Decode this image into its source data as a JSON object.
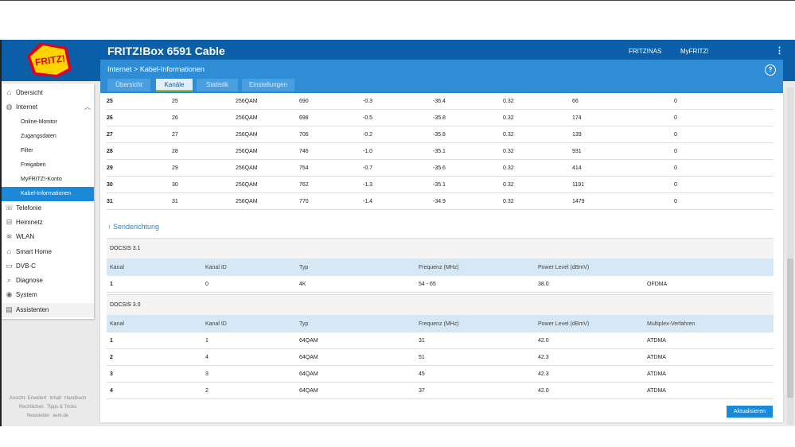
{
  "header": {
    "title": "FRITZ!Box 6591 Cable",
    "logo_text": "FRITZ!",
    "links": [
      "FRITZ!NAS",
      "MyFRITZ!"
    ],
    "kebab": "⋮"
  },
  "subheader": {
    "breadcrumb_parent": "Internet",
    "breadcrumb_sep": ">",
    "breadcrumb_current": "Kabel-Informationen",
    "help": "?",
    "tabs": [
      "Übersicht",
      "Kanäle",
      "Statistik",
      "Einstellungen"
    ],
    "active_tab": "Kanäle"
  },
  "sidebar": {
    "items": [
      {
        "label": "Übersicht",
        "icon": "home-icon",
        "glyph": "⌂"
      },
      {
        "label": "Internet",
        "icon": "globe-icon",
        "glyph": "◍",
        "chevron": "︿"
      },
      {
        "label": "Online-Monitor"
      },
      {
        "label": "Zugangsdaten"
      },
      {
        "label": "Filter"
      },
      {
        "label": "Freigaben"
      },
      {
        "label": "MyFRITZ!-Konto"
      },
      {
        "label": "Kabel-Informationen"
      },
      {
        "label": "Telefonie",
        "icon": "phone-icon",
        "glyph": "☏"
      },
      {
        "label": "Heimnetz",
        "icon": "network-icon",
        "glyph": "⊟"
      },
      {
        "label": "WLAN",
        "icon": "wifi-icon",
        "glyph": "≋"
      },
      {
        "label": "Smart Home",
        "icon": "smarthome-icon",
        "glyph": "⌂"
      },
      {
        "label": "DVB-C",
        "icon": "tv-icon",
        "glyph": "▭"
      },
      {
        "label": "Diagnose",
        "icon": "diagnose-icon",
        "glyph": "⌕"
      },
      {
        "label": "System",
        "icon": "system-icon",
        "glyph": "◉"
      },
      {
        "label": "Assistenten",
        "icon": "assistant-icon",
        "glyph": "▤"
      }
    ],
    "footer": [
      "Ansicht: Erweitert",
      "Inhalt",
      "Handbuch",
      "Rechtliches",
      "Tipps & Tricks",
      "Newsletter",
      "avm.de"
    ]
  },
  "downstream_rows": [
    [
      "25",
      "25",
      "256QAM",
      "690",
      "-0.3",
      "-36.4",
      "0.32",
      "66",
      "0"
    ],
    [
      "26",
      "26",
      "256QAM",
      "698",
      "-0.5",
      "-35.8",
      "0.32",
      "174",
      "0"
    ],
    [
      "27",
      "27",
      "256QAM",
      "706",
      "-0.2",
      "-35.8",
      "0.32",
      "139",
      "0"
    ],
    [
      "28",
      "28",
      "256QAM",
      "746",
      "-1.0",
      "-35.1",
      "0.32",
      "931",
      "0"
    ],
    [
      "29",
      "29",
      "256QAM",
      "754",
      "-0.7",
      "-35.6",
      "0.32",
      "414",
      "0"
    ],
    [
      "30",
      "30",
      "256QAM",
      "762",
      "-1.3",
      "-35.1",
      "0.32",
      "1191",
      "0"
    ],
    [
      "31",
      "31",
      "256QAM",
      "770",
      "-1.4",
      "-34.9",
      "0.32",
      "1479",
      "0"
    ]
  ],
  "upstream": {
    "link_label": "↑ Senderichtung",
    "docsis31": {
      "title": "DOCSIS 3.1",
      "columns": [
        "Kanal",
        "Kanal ID",
        "Typ",
        "Frequenz (MHz)",
        "Power Level (dBmV)",
        ""
      ],
      "rows": [
        [
          "1",
          "0",
          "4K",
          "54 - 65",
          "38.0",
          "OFDMA"
        ]
      ]
    },
    "docsis30": {
      "title": "DOCSIS 3.0",
      "columns": [
        "Kanal",
        "Kanal ID",
        "Typ",
        "Frequenz (MHz)",
        "Power Level (dBmV)",
        "Multiplex-Verfahren"
      ],
      "rows": [
        [
          "1",
          "1",
          "64QAM",
          "31",
          "42.0",
          "ATDMA"
        ],
        [
          "2",
          "4",
          "64QAM",
          "51",
          "42.3",
          "ATDMA"
        ],
        [
          "3",
          "3",
          "64QAM",
          "45",
          "42.3",
          "ATDMA"
        ],
        [
          "4",
          "2",
          "64QAM",
          "37",
          "42.0",
          "ATDMA"
        ]
      ]
    }
  },
  "buttons": {
    "refresh": "Aktualisieren"
  },
  "colors": {
    "header_blue": "#0a5fa8",
    "accent_blue": "#1c88d8",
    "tab_underline": "#8fbd3a"
  }
}
